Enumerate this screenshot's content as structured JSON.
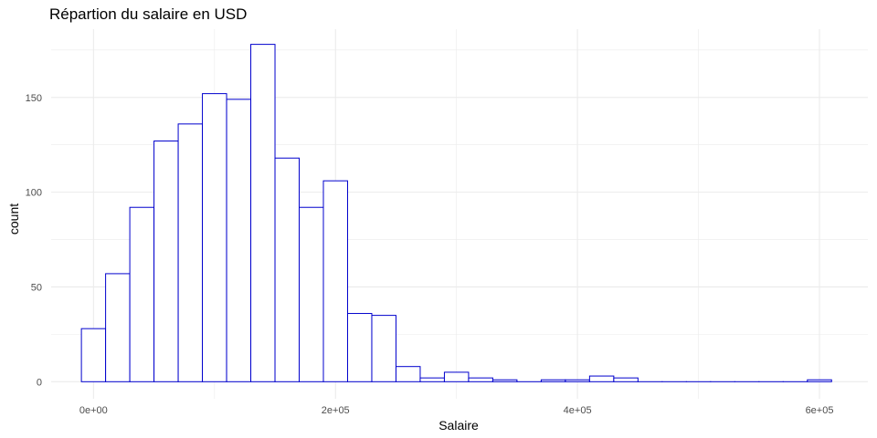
{
  "chart_data": {
    "type": "bar",
    "title": "Répartion du salaire en USD",
    "xlabel": "Salaire",
    "ylabel": "count",
    "x_tick_labels": [
      "0e+00",
      "2e+05",
      "4e+05",
      "6e+05"
    ],
    "x_ticks": [
      0,
      200000,
      400000,
      600000
    ],
    "y_tick_labels": [
      "0",
      "50",
      "100",
      "150"
    ],
    "y_ticks": [
      0,
      50,
      100,
      150
    ],
    "xlim": [
      -35000,
      640000
    ],
    "ylim": [
      -9,
      186
    ],
    "grid": true,
    "legend": "none",
    "colors": {
      "bar_outline": "#0000CD",
      "bar_fill": "#FFFFFF",
      "grid": "#EBEBEB"
    },
    "bins": {
      "start": -10000,
      "width": 20000,
      "counts": [
        28,
        57,
        92,
        127,
        136,
        152,
        149,
        178,
        118,
        92,
        106,
        36,
        35,
        8,
        2,
        5,
        2,
        1,
        0,
        1,
        1,
        3,
        2,
        0,
        0,
        0,
        0,
        0,
        0,
        0,
        1
      ]
    }
  }
}
